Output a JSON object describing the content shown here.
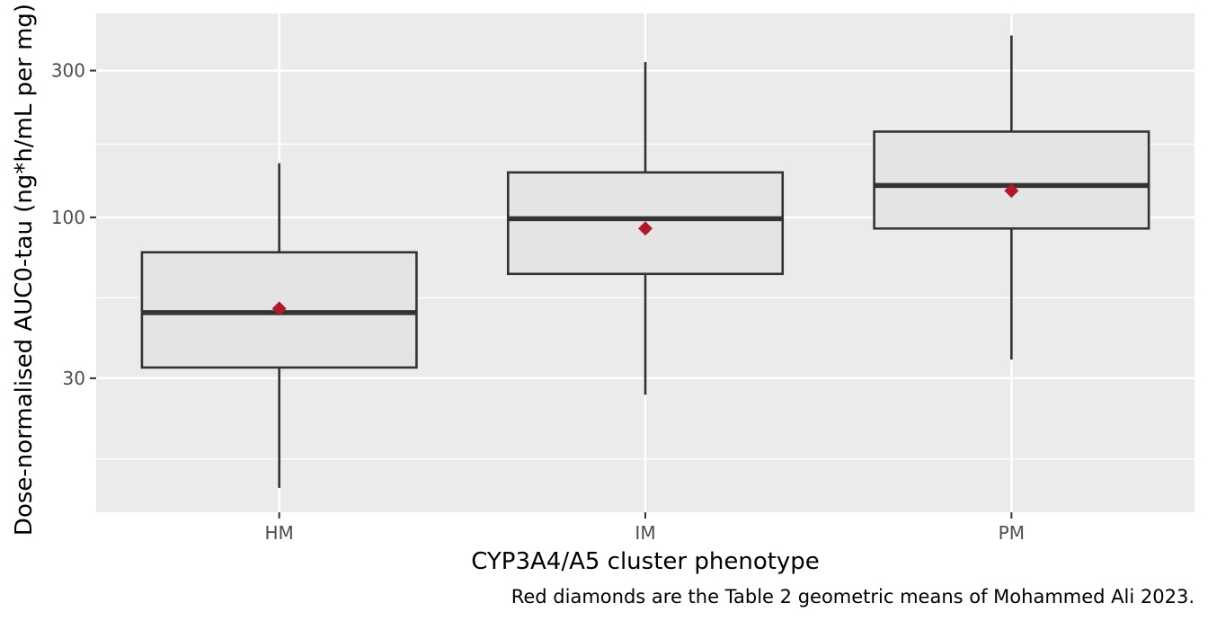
{
  "chart_data": {
    "type": "boxplot",
    "title": "",
    "xlabel": "CYP3A4/A5 cluster phenotype",
    "ylabel": "Dose-normalised AUC0-tau (ng*h/mL per mg)",
    "caption": "Red diamonds are the Table 2 geometric means of Mohammed Ali 2023.",
    "y_scale": "log10",
    "ylim": [
      11,
      460
    ],
    "y_ticks": [
      30,
      100,
      300
    ],
    "y_tick_labels": [
      "30",
      "100",
      "300"
    ],
    "y_minor_ticks": [
      16.4,
      54.8,
      173
    ],
    "categories": [
      "HM",
      "IM",
      "PM"
    ],
    "boxes": [
      {
        "category": "HM",
        "whisker_low": 13.2,
        "q1": 32.5,
        "median": 49,
        "q3": 77,
        "whisker_high": 150
      },
      {
        "category": "IM",
        "whisker_low": 26.5,
        "q1": 65.5,
        "median": 99,
        "q3": 140,
        "whisker_high": 320
      },
      {
        "category": "PM",
        "whisker_low": 34.5,
        "q1": 92,
        "median": 127,
        "q3": 190,
        "whisker_high": 390
      }
    ],
    "means": [
      {
        "category": "HM",
        "value": 50.5
      },
      {
        "category": "IM",
        "value": 92
      },
      {
        "category": "PM",
        "value": 122
      }
    ],
    "grid": true,
    "legend": "none"
  },
  "colors": {
    "panel_background": "#ebebeb",
    "grid": "#ffffff",
    "box_fill": "#e4e4e4",
    "box_stroke": "#333333",
    "mean_marker": "#b2182b",
    "tick_text": "#4d4d4d"
  }
}
